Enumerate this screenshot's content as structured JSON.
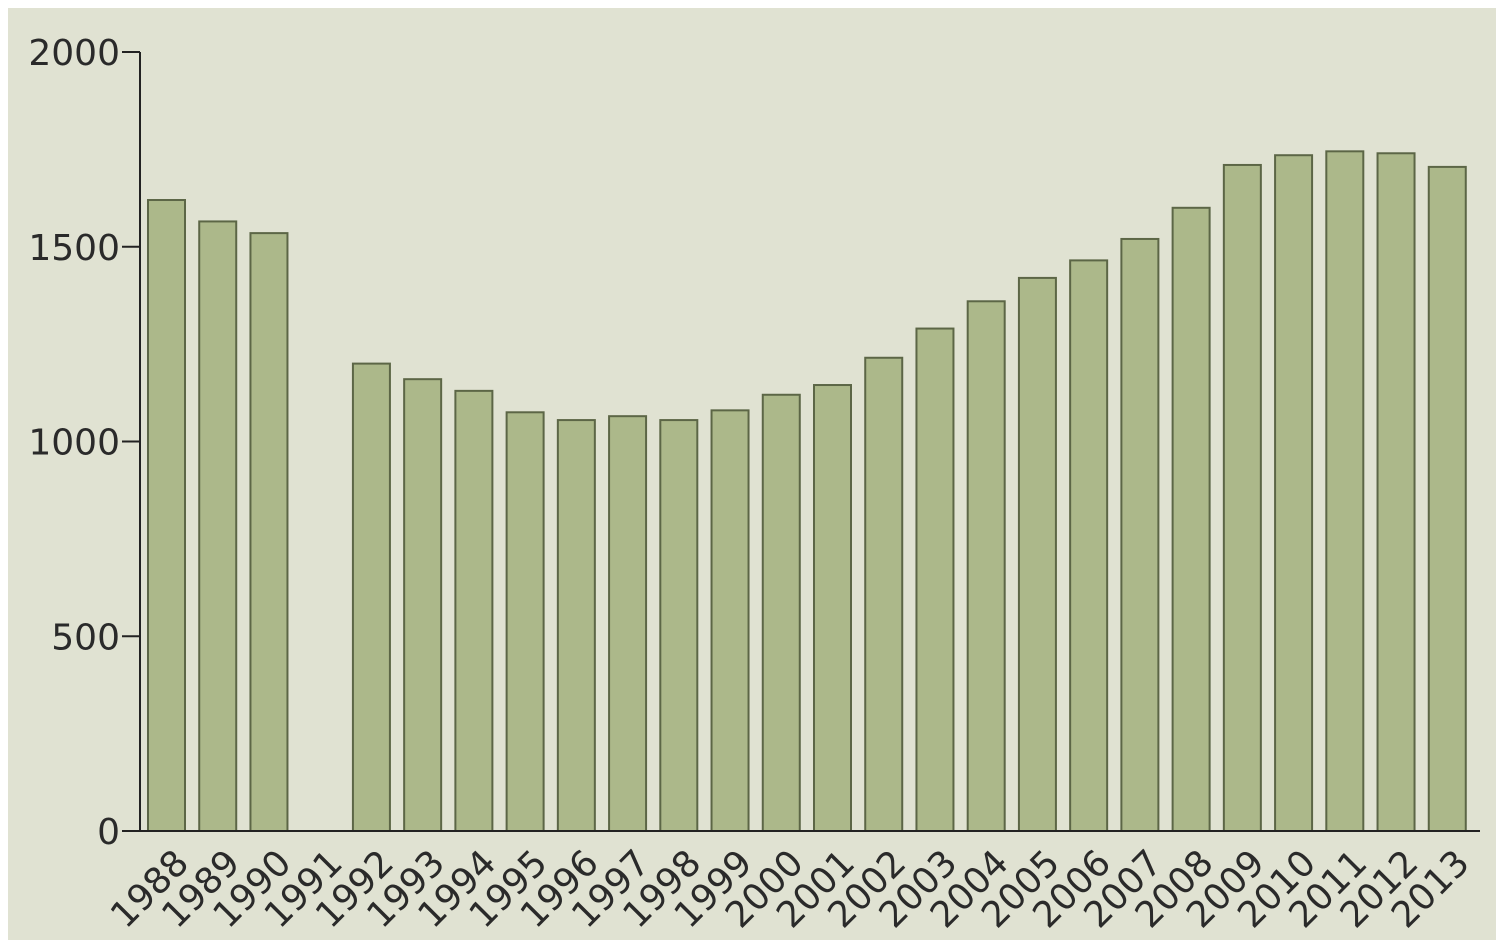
{
  "colors": {
    "background": "#e0e2d2",
    "bar_fill": "#acb88a",
    "bar_stroke": "#5c6646",
    "axis": "#222222",
    "text": "#2a2a2a"
  },
  "chart_data": {
    "type": "bar",
    "title": "",
    "xlabel": "",
    "ylabel": "",
    "categories": [
      "1988",
      "1989",
      "1990",
      "1991",
      "1992",
      "1993",
      "1994",
      "1995",
      "1996",
      "1997",
      "1998",
      "1999",
      "2000",
      "2001",
      "2002",
      "2003",
      "2004",
      "2005",
      "2006",
      "2007",
      "2008",
      "2009",
      "2010",
      "2011",
      "2012",
      "2013"
    ],
    "values": [
      1620,
      1565,
      1535,
      null,
      1200,
      1160,
      1130,
      1075,
      1055,
      1065,
      1055,
      1080,
      1120,
      1145,
      1215,
      1290,
      1360,
      1420,
      1465,
      1520,
      1600,
      1710,
      1735,
      1745,
      1740,
      1705
    ],
    "ylim": [
      0,
      2000
    ],
    "yticks": [
      "0",
      "500",
      "1000",
      "1500",
      "2000"
    ],
    "ytick_values": [
      0,
      500,
      1000,
      1500,
      2000
    ],
    "grid": false,
    "legend": "none"
  }
}
